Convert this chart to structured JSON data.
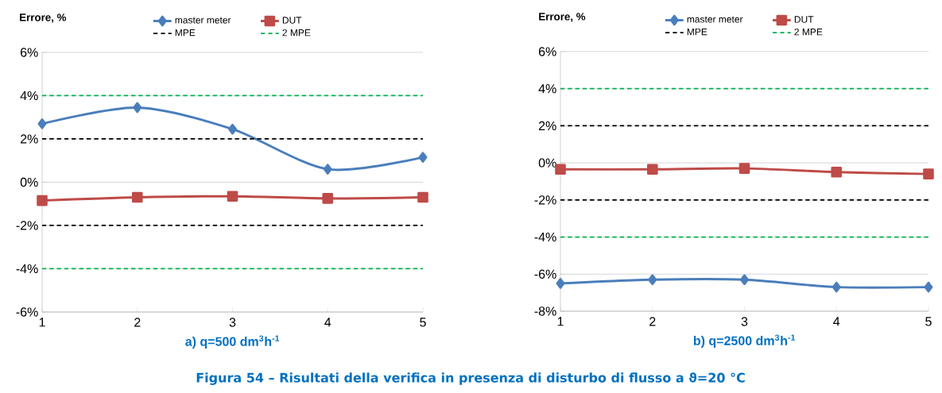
{
  "chart_data": [
    {
      "type": "line",
      "ylabel": "Errore, %",
      "subtitle": "a) q=500 dm$^{3}$h$^{-1}$",
      "annotations": [
        "Figura 54 – Risultati della verifica in presenza di disturbo di flusso a ϑ=20 °C"
      ],
      "categories": [
        "1",
        "2",
        "3",
        "4",
        "5"
      ],
      "series": [
        {
          "name": "master meter",
          "color": "#4a7ebb",
          "marker": "diamond",
          "line_style": "solid",
          "values": [
            2.7,
            3.45,
            2.45,
            0.6,
            1.15
          ]
        },
        {
          "name": "DUT",
          "color": "#be4b48",
          "marker": "square",
          "line_style": "solid",
          "values": [
            -0.85,
            -0.7,
            -0.65,
            -0.75,
            -0.7
          ]
        },
        {
          "name": "MPE",
          "color": "#000000",
          "marker": "none",
          "line_style": "dashed",
          "values": [
            2,
            2,
            2,
            2,
            2
          ]
        },
        {
          "color": "#000000",
          "marker": "none",
          "line_style": "dashed",
          "values": [
            -2,
            -2,
            -2,
            -2,
            -2
          ]
        },
        {
          "name": "2 MPE",
          "color": "#00b050",
          "marker": "none",
          "line_style": "dashed",
          "values": [
            4,
            4,
            4,
            4,
            4
          ]
        },
        {
          "color": "#00b050",
          "marker": "none",
          "line_style": "dashed",
          "values": [
            -4,
            -4,
            -4,
            -4,
            -4
          ]
        }
      ],
      "ylim": [
        -6,
        6
      ],
      "yticks": [
        {
          "value": -6,
          "label": "-6%"
        },
        {
          "value": -4,
          "label": "-4%"
        },
        {
          "value": -2,
          "label": "-2%"
        },
        {
          "value": 0,
          "label": "0%"
        },
        {
          "value": 2,
          "label": "2%"
        },
        {
          "value": 4,
          "label": "4%"
        },
        {
          "value": 6,
          "label": "6%"
        }
      ],
      "grid": "y",
      "legend": "top"
    },
    {
      "type": "line",
      "ylabel": "Errore, %",
      "subtitle": "b) q=2500 dm$^{3}$h$^{-1}$",
      "categories": [
        "1",
        "2",
        "3",
        "4",
        "5"
      ],
      "series": [
        {
          "name": "master meter",
          "color": "#4a7ebb",
          "marker": "diamond",
          "line_style": "solid",
          "values": [
            -6.5,
            -6.3,
            -6.3,
            -6.7,
            -6.7
          ]
        },
        {
          "name": "DUT",
          "color": "#be4b48",
          "marker": "square",
          "line_style": "solid",
          "values": [
            -0.35,
            -0.35,
            -0.3,
            -0.5,
            -0.6
          ]
        },
        {
          "name": "MPE",
          "color": "#000000",
          "marker": "none",
          "line_style": "dashed",
          "values": [
            2,
            2,
            2,
            2,
            2
          ]
        },
        {
          "color": "#000000",
          "marker": "none",
          "line_style": "dashed",
          "values": [
            -2,
            -2,
            -2,
            -2,
            -2
          ]
        },
        {
          "name": "2 MPE",
          "color": "#00b050",
          "marker": "none",
          "line_style": "dashed",
          "values": [
            4,
            4,
            4,
            4,
            4
          ]
        },
        {
          "color": "#00b050",
          "marker": "none",
          "line_style": "dashed",
          "values": [
            -4,
            -4,
            -4,
            -4,
            -4
          ]
        }
      ],
      "ylim": [
        -8,
        6
      ],
      "yticks": [
        {
          "value": -8,
          "label": "-8%"
        },
        {
          "value": -6,
          "label": "-6%"
        },
        {
          "value": -4,
          "label": "-4%"
        },
        {
          "value": -2,
          "label": "-2%"
        },
        {
          "value": 0,
          "label": "0%"
        },
        {
          "value": 2,
          "label": "2%"
        },
        {
          "value": 4,
          "label": "4%"
        },
        {
          "value": 6,
          "label": "6%"
        }
      ],
      "grid": "y",
      "legend": "top"
    }
  ]
}
